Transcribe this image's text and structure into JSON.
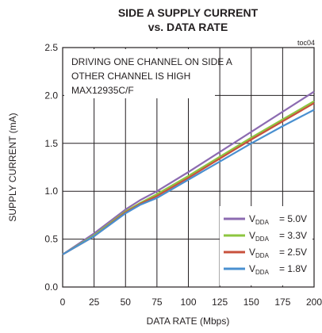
{
  "chart_data": {
    "type": "line",
    "title_line1": "SIDE A SUPPLY CURRENT",
    "title_line2": "vs. DATA RATE",
    "figure_id": "toc04",
    "xlabel": "DATA RATE (Mbps)",
    "ylabel": "SUPPLY CURRENT (mA)",
    "xlim": [
      0,
      200
    ],
    "ylim": [
      0,
      2.5
    ],
    "xticks": [
      0,
      25,
      50,
      75,
      100,
      125,
      150,
      175,
      200
    ],
    "yticks": [
      0.0,
      0.5,
      1.0,
      1.5,
      2.0,
      2.5
    ],
    "ytick_labels": [
      "0.0",
      "0.5",
      "1.0",
      "1.5",
      "2.0",
      "2.5"
    ],
    "grid": true,
    "annotations": [
      "DRIVING ONE CHANNEL ON SIDE A",
      "OTHER CHANNEL IS HIGH",
      "MAX12935C/F"
    ],
    "legend_position": "bottom-right",
    "series": [
      {
        "name": "V_DDA = 5.0V",
        "label_main": "V",
        "label_sub": "DDA",
        "label_value": "= 5.0V",
        "color": "#8c6bb1",
        "x": [
          0,
          25,
          50,
          62,
          75,
          100,
          125,
          150,
          175,
          200
        ],
        "y": [
          0.34,
          0.56,
          0.81,
          0.91,
          1.0,
          1.2,
          1.41,
          1.62,
          1.83,
          2.04
        ]
      },
      {
        "name": "V_DDA = 3.3V",
        "label_main": "V",
        "label_sub": "DDA",
        "label_value": "= 3.3V",
        "color": "#8dc63f",
        "x": [
          0,
          25,
          50,
          62,
          75,
          100,
          125,
          150,
          175,
          200
        ],
        "y": [
          0.34,
          0.54,
          0.79,
          0.88,
          0.97,
          1.16,
          1.36,
          1.56,
          1.75,
          1.94
        ]
      },
      {
        "name": "V_DDA = 2.5V",
        "label_main": "V",
        "label_sub": "DDA",
        "label_value": "= 2.5V",
        "color": "#c8513c",
        "x": [
          0,
          25,
          50,
          62,
          75,
          100,
          125,
          150,
          175,
          200
        ],
        "y": [
          0.34,
          0.53,
          0.78,
          0.87,
          0.95,
          1.14,
          1.34,
          1.54,
          1.73,
          1.92
        ]
      },
      {
        "name": "V_DDA = 1.8V",
        "label_main": "V",
        "label_sub": "DDA",
        "label_value": "= 1.8V",
        "color": "#4a90d0",
        "x": [
          0,
          25,
          50,
          62,
          75,
          100,
          125,
          150,
          175,
          200
        ],
        "y": [
          0.34,
          0.53,
          0.77,
          0.86,
          0.93,
          1.12,
          1.31,
          1.5,
          1.68,
          1.85
        ]
      }
    ]
  }
}
